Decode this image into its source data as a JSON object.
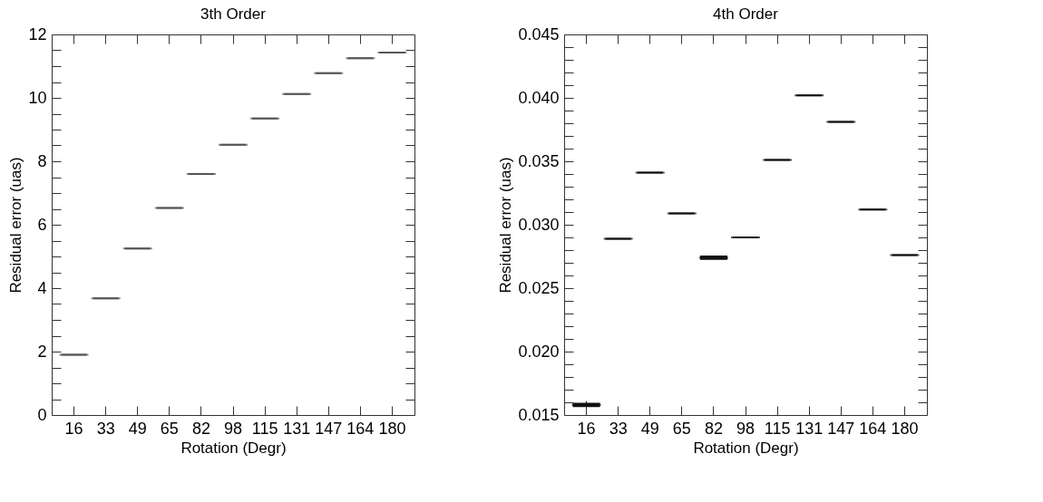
{
  "chart_data": [
    {
      "type": "box",
      "title": "3th Order",
      "xlabel": "Rotation (Degr)",
      "ylabel": "Residual error (uas)",
      "categories": [
        "16",
        "33",
        "49",
        "65",
        "82",
        "98",
        "115",
        "131",
        "147",
        "164",
        "180"
      ],
      "color": "#555555",
      "boxes": [
        {
          "low": 1.9,
          "q1": 1.9,
          "median": 1.9,
          "q3": 1.9,
          "high": 1.9
        },
        {
          "low": 3.68,
          "q1": 3.68,
          "median": 3.68,
          "q3": 3.68,
          "high": 3.68
        },
        {
          "low": 5.25,
          "q1": 5.25,
          "median": 5.25,
          "q3": 5.25,
          "high": 5.25
        },
        {
          "low": 6.53,
          "q1": 6.53,
          "median": 6.53,
          "q3": 6.53,
          "high": 6.53
        },
        {
          "low": 7.6,
          "q1": 7.6,
          "median": 7.6,
          "q3": 7.6,
          "high": 7.6
        },
        {
          "low": 8.52,
          "q1": 8.52,
          "median": 8.52,
          "q3": 8.52,
          "high": 8.52
        },
        {
          "low": 9.35,
          "q1": 9.35,
          "median": 9.35,
          "q3": 9.35,
          "high": 9.35
        },
        {
          "low": 10.12,
          "q1": 10.12,
          "median": 10.12,
          "q3": 10.12,
          "high": 10.12
        },
        {
          "low": 10.78,
          "q1": 10.78,
          "median": 10.78,
          "q3": 10.78,
          "high": 10.78
        },
        {
          "low": 11.25,
          "q1": 11.25,
          "median": 11.25,
          "q3": 11.25,
          "high": 11.25
        },
        {
          "low": 11.43,
          "q1": 11.43,
          "median": 11.43,
          "q3": 11.43,
          "high": 11.43
        }
      ],
      "ylim": [
        0,
        12
      ],
      "yticks": [
        0,
        {
          "value": 0.5,
          "label": null
        },
        {
          "value": 1,
          "label": null
        },
        {
          "value": 1.5,
          "label": null
        },
        2,
        {
          "value": 2.5,
          "label": null
        },
        {
          "value": 3,
          "label": null
        },
        {
          "value": 3.5,
          "label": null
        },
        4,
        {
          "value": 4.5,
          "label": null
        },
        {
          "value": 5,
          "label": null
        },
        {
          "value": 5.5,
          "label": null
        },
        6,
        {
          "value": 6.5,
          "label": null
        },
        {
          "value": 7,
          "label": null
        },
        {
          "value": 7.5,
          "label": null
        },
        8,
        {
          "value": 8.5,
          "label": null
        },
        {
          "value": 9,
          "label": null
        },
        {
          "value": 9.5,
          "label": null
        },
        10,
        {
          "value": 10.5,
          "label": null
        },
        {
          "value": 11,
          "label": null
        },
        {
          "value": 11.5,
          "label": null
        },
        12
      ],
      "grid": false
    },
    {
      "type": "box",
      "title": "4th Order",
      "xlabel": "Rotation (Degr)",
      "ylabel": "Residual error (uas)",
      "categories": [
        "16",
        "33",
        "49",
        "65",
        "82",
        "98",
        "115",
        "131",
        "147",
        "164",
        "180"
      ],
      "color": "#111111",
      "boxes": [
        {
          "low": 0.0157,
          "q1": 0.0157,
          "median": 0.0158,
          "q3": 0.0159,
          "high": 0.0161
        },
        {
          "low": 0.0289,
          "q1": 0.0289,
          "median": 0.0289,
          "q3": 0.0289,
          "high": 0.0289
        },
        {
          "low": 0.0341,
          "q1": 0.0341,
          "median": 0.0341,
          "q3": 0.0341,
          "high": 0.0341
        },
        {
          "low": 0.0309,
          "q1": 0.0309,
          "median": 0.0309,
          "q3": 0.0309,
          "high": 0.0309
        },
        {
          "low": 0.0273,
          "q1": 0.0273,
          "median": 0.0274,
          "q3": 0.0275,
          "high": 0.0275
        },
        {
          "low": 0.029,
          "q1": 0.029,
          "median": 0.029,
          "q3": 0.029,
          "high": 0.029
        },
        {
          "low": 0.0351,
          "q1": 0.0351,
          "median": 0.0351,
          "q3": 0.0351,
          "high": 0.0351
        },
        {
          "low": 0.0402,
          "q1": 0.0402,
          "median": 0.0402,
          "q3": 0.0402,
          "high": 0.0402
        },
        {
          "low": 0.0381,
          "q1": 0.0381,
          "median": 0.0381,
          "q3": 0.0381,
          "high": 0.0381
        },
        {
          "low": 0.0312,
          "q1": 0.0312,
          "median": 0.0312,
          "q3": 0.0312,
          "high": 0.0312
        },
        {
          "low": 0.0276,
          "q1": 0.0276,
          "median": 0.0276,
          "q3": 0.0276,
          "high": 0.0276
        }
      ],
      "ylim": [
        0.015,
        0.045
      ],
      "yticks": [
        0.015,
        {
          "value": 0.016,
          "label": null
        },
        {
          "value": 0.017,
          "label": null
        },
        {
          "value": 0.018,
          "label": null
        },
        {
          "value": 0.019,
          "label": null
        },
        {
          "value": 0.02,
          "label": "0.020"
        },
        {
          "value": 0.021,
          "label": null
        },
        {
          "value": 0.022,
          "label": null
        },
        {
          "value": 0.023,
          "label": null
        },
        {
          "value": 0.024,
          "label": null
        },
        0.025,
        {
          "value": 0.026,
          "label": null
        },
        {
          "value": 0.027,
          "label": null
        },
        {
          "value": 0.028,
          "label": null
        },
        {
          "value": 0.029,
          "label": null
        },
        {
          "value": 0.03,
          "label": "0.030"
        },
        {
          "value": 0.031,
          "label": null
        },
        {
          "value": 0.032,
          "label": null
        },
        {
          "value": 0.033,
          "label": null
        },
        {
          "value": 0.034,
          "label": null
        },
        0.035,
        {
          "value": 0.036,
          "label": null
        },
        {
          "value": 0.037,
          "label": null
        },
        {
          "value": 0.038,
          "label": null
        },
        {
          "value": 0.039,
          "label": null
        },
        {
          "value": 0.04,
          "label": "0.040"
        },
        {
          "value": 0.041,
          "label": null
        },
        {
          "value": 0.042,
          "label": null
        },
        {
          "value": 0.043,
          "label": null
        },
        {
          "value": 0.044,
          "label": null
        },
        0.045
      ],
      "grid": false
    }
  ]
}
